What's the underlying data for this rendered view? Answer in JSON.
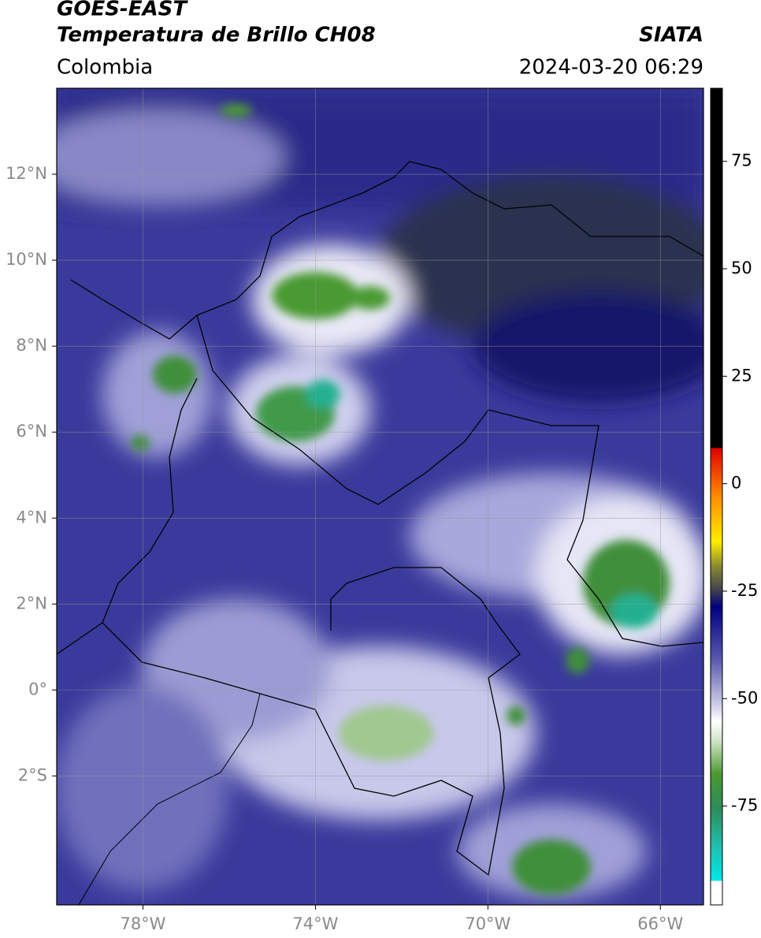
{
  "header": {
    "satellite": "GOES-EAST",
    "product": "Temperatura de Brillo CH08",
    "region": "Colombia",
    "source": "SIATA",
    "datetime": "2024-03-20 06:29"
  },
  "map": {
    "xlim": [
      -80,
      -65
    ],
    "ylim": [
      -5,
      14
    ],
    "grid": true,
    "xticks": [
      {
        "value": -78,
        "label": "78°W"
      },
      {
        "value": -74,
        "label": "74°W"
      },
      {
        "value": -70,
        "label": "70°W"
      },
      {
        "value": -66,
        "label": "66°W"
      }
    ],
    "yticks": [
      {
        "value": 12,
        "label": "12°N"
      },
      {
        "value": 10,
        "label": "10°N"
      },
      {
        "value": 8,
        "label": "8°N"
      },
      {
        "value": 6,
        "label": "6°N"
      },
      {
        "value": 4,
        "label": "4°N"
      },
      {
        "value": 2,
        "label": "2°N"
      },
      {
        "value": 0,
        "label": "0°"
      },
      {
        "value": -2,
        "label": "2°S"
      }
    ]
  },
  "colorbar": {
    "lim": [
      -98,
      92
    ],
    "ticks": [
      75,
      50,
      25,
      0,
      -25,
      -50,
      -75
    ]
  }
}
